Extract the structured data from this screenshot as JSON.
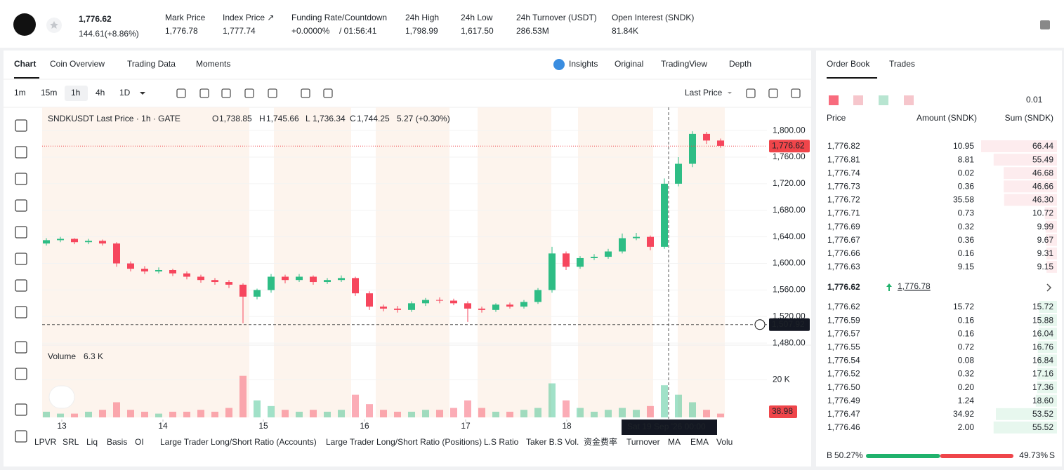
{
  "header": {
    "price": "1,776.62",
    "change": "144.61(+8.86%)",
    "stats": [
      {
        "label": "Mark Price",
        "value": "1,776.78"
      },
      {
        "label": "Index Price ↗",
        "value": "1,777.74"
      },
      {
        "label": "Funding Rate/Countdown",
        "value": "+0.0000%",
        "extra": "/ 01:56:41"
      },
      {
        "label": "24h High",
        "value": "1,798.99"
      },
      {
        "label": "24h Low",
        "value": "1,617.50"
      },
      {
        "label": "24h Turnover (USDT)",
        "value": "286.53M"
      },
      {
        "label": "Open Interest (SNDK)",
        "value": "81.84K"
      }
    ]
  },
  "tabs": [
    "Chart",
    "Coin Overview",
    "Trading Data",
    "Moments"
  ],
  "views": [
    "Insights",
    "Original",
    "TradingView",
    "Depth"
  ],
  "intervals": [
    "1m",
    "15m",
    "1h",
    "4h",
    "1D"
  ],
  "price_source": "Last Price",
  "chart_data": {
    "type": "candlestick",
    "title": "SNDKUSDT Last Price · 1h · GATE",
    "legend": [
      {
        "key": "O",
        "value": "1,738.85"
      },
      {
        "key": "H",
        "value": "1,745.66"
      },
      {
        "key": "L",
        "value": "1,736.34"
      },
      {
        "key": "C",
        "value": "1,744.25"
      }
    ],
    "legend_change": "5.27 (+0.30%)",
    "open": [
      1630,
      1635,
      1637,
      1632,
      1634,
      1630,
      1600,
      1592,
      1588,
      1590,
      1585,
      1580,
      1575,
      1572,
      1568,
      1550,
      1560,
      1580,
      1575,
      1580,
      1572,
      1575,
      1578,
      1555,
      1535,
      1532,
      1530,
      1540,
      1545,
      1544,
      1540,
      1532,
      1530,
      1538,
      1535,
      1542,
      1560,
      1615,
      1595,
      1608,
      1610,
      1618,
      1638,
      1640,
      1625,
      1720,
      1750,
      1795,
      1785
    ],
    "high": [
      1638,
      1640,
      1638,
      1637,
      1636,
      1632,
      1603,
      1596,
      1594,
      1592,
      1588,
      1583,
      1578,
      1575,
      1570,
      1562,
      1584,
      1583,
      1584,
      1582,
      1578,
      1582,
      1580,
      1558,
      1538,
      1536,
      1543,
      1548,
      1549,
      1547,
      1543,
      1535,
      1540,
      1541,
      1545,
      1563,
      1625,
      1618,
      1611,
      1614,
      1622,
      1645,
      1646,
      1642,
      1728,
      1760,
      1799,
      1798,
      1788
    ],
    "low": [
      1627,
      1632,
      1629,
      1629,
      1627,
      1595,
      1588,
      1584,
      1585,
      1581,
      1576,
      1571,
      1568,
      1563,
      1510,
      1546,
      1556,
      1570,
      1572,
      1568,
      1569,
      1572,
      1551,
      1530,
      1528,
      1526,
      1527,
      1536,
      1540,
      1537,
      1512,
      1526,
      1527,
      1532,
      1532,
      1539,
      1556,
      1590,
      1592,
      1605,
      1607,
      1615,
      1635,
      1620,
      1622,
      1716,
      1745,
      1780,
      1774
    ],
    "close": [
      1635,
      1637,
      1632,
      1634,
      1630,
      1600,
      1592,
      1588,
      1590,
      1585,
      1580,
      1575,
      1572,
      1568,
      1550,
      1560,
      1580,
      1575,
      1580,
      1572,
      1575,
      1578,
      1555,
      1535,
      1532,
      1530,
      1540,
      1545,
      1544,
      1540,
      1532,
      1530,
      1538,
      1535,
      1542,
      1560,
      1615,
      1595,
      1608,
      1610,
      1618,
      1638,
      1640,
      1625,
      1720,
      1750,
      1795,
      1785,
      1777
    ],
    "volume": [
      3,
      2,
      2,
      3,
      4,
      8,
      4,
      3,
      2,
      3,
      3,
      4,
      3,
      5,
      22,
      9,
      6,
      4,
      3,
      4,
      3,
      4,
      12,
      7,
      4,
      3,
      3,
      4,
      4,
      5,
      9,
      5,
      3,
      3,
      4,
      5,
      18,
      9,
      5,
      3,
      4,
      5,
      4,
      6,
      17,
      12,
      8,
      4,
      2
    ],
    "up_color": "#2ebd85",
    "down_color": "#f6465d",
    "xlim": [
      -0.3,
      51.3
    ],
    "xticks": [
      {
        "value": 1.1,
        "label": "13"
      },
      {
        "value": 8.3,
        "label": "14"
      },
      {
        "value": 15.45,
        "label": "15"
      },
      {
        "value": 22.65,
        "label": "16"
      },
      {
        "value": 29.85,
        "label": "17"
      },
      {
        "value": 37.05,
        "label": "18"
      }
    ],
    "ylim": [
      1477,
      1835
    ],
    "yticks": [
      {
        "value": 1800,
        "label": "1,800.00"
      },
      {
        "value": 1760,
        "label": "1,760.00"
      },
      {
        "value": 1720,
        "label": "1,720.00"
      },
      {
        "value": 1680,
        "label": "1,680.00"
      },
      {
        "value": 1640,
        "label": "1,640.00"
      },
      {
        "value": 1600,
        "label": "1,600.00"
      },
      {
        "value": 1560,
        "label": "1,560.00"
      },
      {
        "value": 1520,
        "label": "1,520.00"
      },
      {
        "value": 1480,
        "label": "1,480.00"
      }
    ],
    "volume_ylim": [
      0,
      36
    ],
    "volume_yticks": [
      {
        "value": 20,
        "label": "20 K"
      }
    ],
    "volume_label": "Volume",
    "volume_value": "6.3 K",
    "volume_last": "38.98",
    "last_price": {
      "value": 1776.62,
      "label": "1,776.62"
    },
    "crosshair_price": {
      "value": 1507.92,
      "label": "1,507.92"
    },
    "crosshair_time": "Sat 19 Sep '26   00:00"
  },
  "indicators": [
    "LPVR",
    "SRL",
    "Liq",
    "Basis",
    "OI",
    "Large Trader Long/Short Ratio (Accounts)",
    "Large Trader Long/Short Ratio (Positions)",
    "L.S Ratio",
    "Taker B.S Vol.",
    "资金费率",
    "Turnover",
    "MA",
    "EMA",
    "Volu"
  ],
  "order_book": {
    "tabs": [
      "Order Book",
      "Trades"
    ],
    "step": "0.01",
    "columns": [
      "Price",
      "Amount (SNDK)",
      "Sum (SNDK)"
    ],
    "asks": [
      [
        "1,776.82",
        "10.95",
        "66.44"
      ],
      [
        "1,776.81",
        "8.81",
        "55.49"
      ],
      [
        "1,776.74",
        "0.02",
        "46.68"
      ],
      [
        "1,776.73",
        "0.36",
        "46.66"
      ],
      [
        "1,776.72",
        "35.58",
        "46.30"
      ],
      [
        "1,776.71",
        "0.73",
        "10.72"
      ],
      [
        "1,776.69",
        "0.32",
        "9.99"
      ],
      [
        "1,776.67",
        "0.36",
        "9.67"
      ],
      [
        "1,776.66",
        "0.16",
        "9.31"
      ],
      [
        "1,776.63",
        "9.15",
        "9.15"
      ]
    ],
    "mid_price": "1,776.62",
    "mark_price": "1,776.78",
    "bids": [
      [
        "1,776.62",
        "15.72",
        "15.72"
      ],
      [
        "1,776.59",
        "0.16",
        "15.88"
      ],
      [
        "1,776.57",
        "0.16",
        "16.04"
      ],
      [
        "1,776.55",
        "0.72",
        "16.76"
      ],
      [
        "1,776.54",
        "0.08",
        "16.84"
      ],
      [
        "1,776.52",
        "0.32",
        "17.16"
      ],
      [
        "1,776.50",
        "0.20",
        "17.36"
      ],
      [
        "1,776.49",
        "1.24",
        "18.60"
      ],
      [
        "1,776.47",
        "34.92",
        "53.52"
      ],
      [
        "1,776.46",
        "2.00",
        "55.52"
      ]
    ],
    "buy_key": "B",
    "buy_ratio": "50.27%",
    "sell_ratio": "49.73%",
    "sell_key": "S"
  }
}
